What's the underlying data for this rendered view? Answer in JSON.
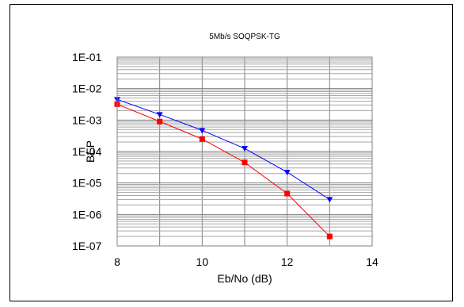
{
  "chart_data": {
    "type": "line",
    "title": "5Mb/s SOQPSK-TG",
    "xlabel": "Eb/No (dB)",
    "ylabel": "BEP",
    "xlim": [
      8,
      14
    ],
    "ylim": [
      1e-07,
      0.1
    ],
    "yscale": "log",
    "x_ticks": [
      "8",
      "10",
      "12",
      "14"
    ],
    "y_ticks": [
      "1E-01",
      "1E-02",
      "1E-03",
      "1E-04",
      "1E-05",
      "1E-06",
      "1E-07"
    ],
    "grid": true,
    "legend": "none",
    "series": [
      {
        "color": "#0000ff",
        "marker": "triangle-down",
        "x": [
          8,
          9,
          10,
          11,
          12,
          13
        ],
        "y": [
          0.0045,
          0.0015,
          0.00047,
          0.000125,
          2.2e-05,
          3e-06
        ]
      },
      {
        "color": "#ff0000",
        "marker": "square",
        "x": [
          8,
          9,
          10,
          11,
          12,
          13
        ],
        "y": [
          0.0032,
          0.0009,
          0.00025,
          4.5e-05,
          4.6e-06,
          2e-07
        ]
      }
    ]
  }
}
